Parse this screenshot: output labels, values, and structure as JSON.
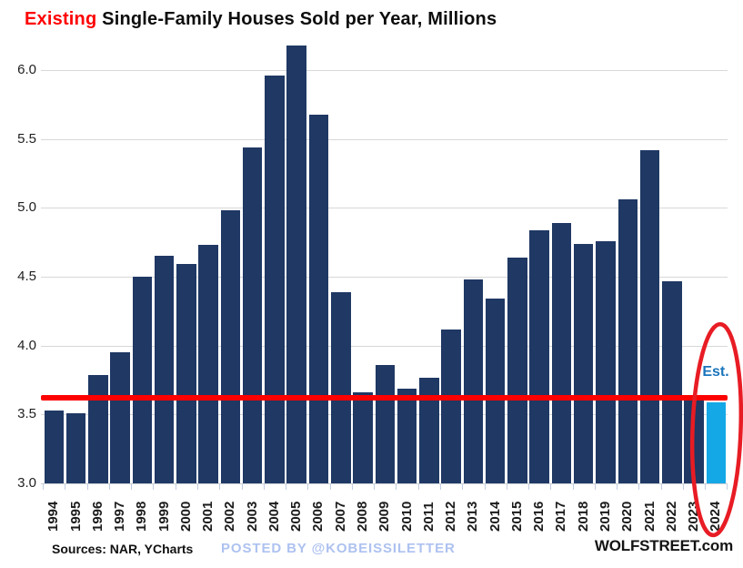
{
  "title": {
    "highlight": "Existing",
    "rest": " Single-Family Houses Sold per Year, Millions"
  },
  "annotations": {
    "est_label": "Est."
  },
  "footer": {
    "sources": "Sources: NAR, YCharts",
    "posted_by": "POSTED BY @KOBEISSILETTER",
    "site": "WOLFSTREET.com"
  },
  "colors": {
    "title_highlight": "#ff0000",
    "bar": "#1f3864",
    "highlight_bar": "#14a8e6",
    "red_line": "#fd0000",
    "ellipse": "#e81c24",
    "est_label": "#1b75bc",
    "posted_by": "#aec2f0",
    "gridline": "#d8d8d8"
  },
  "chart_data": {
    "type": "bar",
    "title": "Existing Single-Family Houses Sold per Year, Millions",
    "categories": [
      "1994",
      "1995",
      "1996",
      "1997",
      "1998",
      "1999",
      "2000",
      "2001",
      "2002",
      "2003",
      "2004",
      "2005",
      "2006",
      "2007",
      "2008",
      "2009",
      "2010",
      "2011",
      "2012",
      "2013",
      "2014",
      "2015",
      "2016",
      "2017",
      "2018",
      "2019",
      "2020",
      "2021",
      "2022",
      "2023",
      "2024"
    ],
    "values": [
      3.53,
      3.51,
      3.79,
      3.95,
      4.5,
      4.65,
      4.59,
      4.73,
      4.98,
      5.44,
      5.96,
      6.18,
      5.68,
      4.39,
      3.66,
      3.86,
      3.69,
      3.77,
      4.12,
      4.48,
      4.34,
      4.64,
      4.84,
      4.89,
      4.74,
      4.76,
      5.06,
      5.42,
      4.47,
      3.64,
      3.59
    ],
    "highlight": {
      "category": "2024",
      "label": "Est.",
      "color": "#14a8e6"
    },
    "reference_line": {
      "value": 3.62,
      "color": "#fd0000"
    },
    "ylim": [
      3.0,
      6.3
    ],
    "yticks": [
      3.0,
      3.5,
      4.0,
      4.5,
      5.0,
      5.5,
      6.0
    ],
    "ytick_labels": [
      "3.0",
      "3.5",
      "4.0",
      "4.5",
      "5.0",
      "5.5",
      "6.0"
    ],
    "xlabel": "",
    "grid": true,
    "legend": false
  }
}
